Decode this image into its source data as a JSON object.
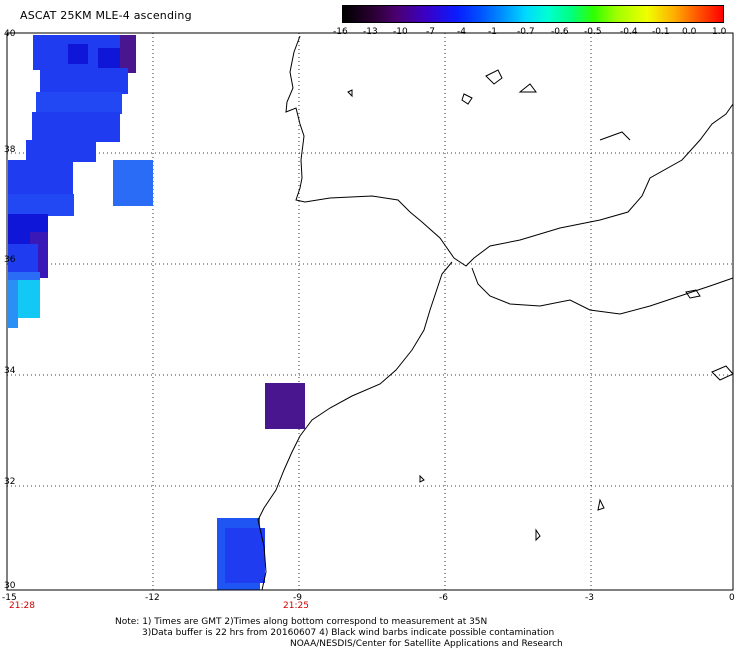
{
  "header": {
    "title": "ASCAT 25KM MLE-4 ascending"
  },
  "colorbar": {
    "labels": [
      "-16",
      "-13",
      "-10",
      "-7",
      "-4",
      "-1",
      "-0.7",
      "-0.6",
      "-0.5",
      "-0.4",
      "-0.1",
      "0.0",
      "1.0"
    ]
  },
  "axes": {
    "lon_ticks": [
      "-15",
      "-12",
      "-9",
      "-6",
      "-3",
      "0"
    ],
    "lat_ticks": [
      "40",
      "38",
      "36",
      "34",
      "32",
      "30"
    ],
    "lon_range": [
      -15,
      0
    ],
    "lat_range": [
      30,
      40
    ]
  },
  "times": {
    "left": "21:28",
    "mid": "21:25"
  },
  "notes": {
    "line1": "Note: 1) Times are GMT 2)Times along bottom correspond to measurement at 35N",
    "line2": "3)Data buffer is 22 hrs from 20160607 4) Black wind barbs indicate possible contamination",
    "line3": "NOAA/NESDIS/Center for Satellite Applications and Research"
  },
  "colors": {
    "blue": "#1f3cf0",
    "deep_blue": "#1016d8",
    "medium_blue": "#2a6cf5",
    "light_blue": "#14c8f5",
    "purple": "#4a1690",
    "indigo": "#3a18b8"
  }
}
